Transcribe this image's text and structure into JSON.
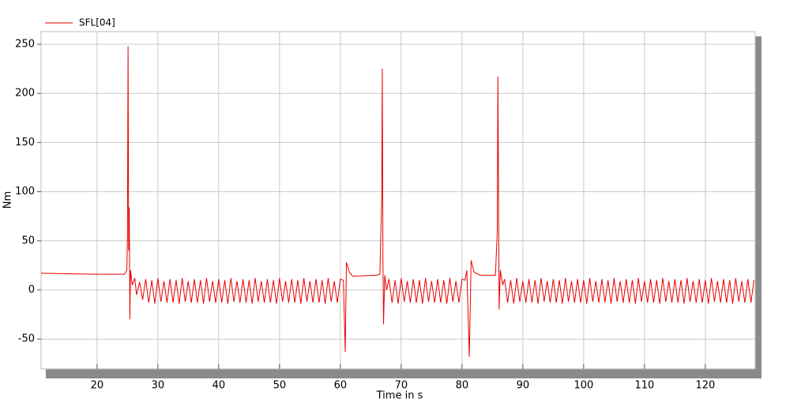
{
  "chart_data": {
    "type": "line",
    "xlabel": "Time in s",
    "ylabel": "Nm",
    "xlim": [
      10.8,
      128.2
    ],
    "ylim": [
      -80.4,
      262.9
    ],
    "xticks": [
      20,
      30,
      40,
      50,
      60,
      70,
      80,
      90,
      100,
      110,
      120
    ],
    "yticks": [
      -50,
      0,
      50,
      100,
      150,
      200,
      250
    ],
    "grid": true,
    "legend": "top-left",
    "x": [
      10.8,
      15,
      20,
      24.5,
      24.9,
      25,
      25.1,
      25.2,
      25.3,
      25.4,
      25.5,
      25.8,
      26.2,
      26.5,
      27,
      27.5,
      28,
      28.5,
      29,
      29.5,
      30,
      30.5,
      31,
      31.5,
      32,
      32.5,
      33,
      33.5,
      34,
      34.5,
      35,
      35.5,
      36,
      36.5,
      37,
      37.5,
      38,
      38.5,
      39,
      39.5,
      40,
      40.5,
      41,
      41.5,
      42,
      42.5,
      43,
      43.5,
      44,
      44.5,
      45,
      45.5,
      46,
      46.5,
      47,
      47.5,
      48,
      48.5,
      49,
      49.5,
      50,
      50.5,
      51,
      51.5,
      52,
      52.5,
      53,
      53.5,
      54,
      54.5,
      55,
      55.5,
      56,
      56.5,
      57,
      57.5,
      58,
      58.5,
      59,
      59.5,
      60,
      60.5,
      60.8,
      61,
      61.5,
      62,
      66,
      66.5,
      66.8,
      66.9,
      67,
      67.1,
      67.3,
      67.6,
      68,
      68.5,
      69,
      69.5,
      70,
      70.5,
      71,
      71.5,
      72,
      72.5,
      73,
      73.5,
      74,
      74.5,
      75,
      75.5,
      76,
      76.5,
      77,
      77.5,
      78,
      78.5,
      79,
      79.5,
      80,
      80.5,
      80.8,
      81.2,
      81.5,
      82,
      83,
      85.5,
      85.8,
      85.9,
      86,
      86.1,
      86.3,
      86.7,
      87,
      87.5,
      88,
      88.5,
      89,
      89.5,
      90,
      90.5,
      91,
      91.5,
      92,
      92.5,
      93,
      93.5,
      94,
      94.5,
      95,
      95.5,
      96,
      96.5,
      97,
      97.5,
      98,
      98.5,
      99,
      99.5,
      100,
      100.5,
      101,
      101.5,
      102,
      102.5,
      103,
      103.5,
      104,
      104.5,
      105,
      105.5,
      106,
      106.5,
      107,
      107.5,
      108,
      108.5,
      109,
      109.5,
      110,
      110.5,
      111,
      111.5,
      112,
      112.5,
      113,
      113.5,
      114,
      114.5,
      115,
      115.5,
      116,
      116.5,
      117,
      117.5,
      118,
      118.5,
      119,
      119.5,
      120,
      120.5,
      121,
      121.5,
      122,
      122.5,
      123,
      123.5,
      124,
      124.5,
      125,
      125.5,
      126,
      126.5,
      127,
      127.5,
      128
    ],
    "series": [
      {
        "name": "SFL[04]",
        "color": "#e80000",
        "values": [
          17,
          16.5,
          16,
          16,
          20,
          55,
          248,
          40,
          84,
          -30,
          20,
          5,
          12,
          -5,
          8,
          -10,
          11,
          -13,
          10,
          -14,
          12,
          -12,
          9,
          -13,
          11,
          -13,
          10,
          -14,
          12,
          -12,
          9,
          -13,
          11,
          -13,
          10,
          -14,
          12,
          -12,
          9,
          -13,
          11,
          -13,
          10,
          -14,
          12,
          -12,
          9,
          -13,
          11,
          -13,
          10,
          -14,
          12,
          -12,
          9,
          -13,
          11,
          -13,
          10,
          -14,
          12,
          -12,
          9,
          -13,
          11,
          -13,
          10,
          -14,
          12,
          -12,
          9,
          -13,
          11,
          -13,
          10,
          -14,
          12,
          -12,
          9,
          -13,
          11,
          10,
          -63,
          28,
          18,
          14,
          15,
          16,
          95,
          225,
          30,
          -35,
          15,
          0,
          11,
          -13,
          10,
          -14,
          12,
          -12,
          9,
          -13,
          11,
          -13,
          10,
          -14,
          12,
          -12,
          9,
          -13,
          11,
          -13,
          10,
          -14,
          12,
          -12,
          9,
          -13,
          11,
          10,
          20,
          -68,
          30,
          18,
          15,
          15,
          60,
          217,
          114,
          -20,
          20,
          5,
          11,
          -13,
          10,
          -14,
          12,
          -12,
          9,
          -13,
          11,
          -13,
          10,
          -14,
          12,
          -12,
          9,
          -13,
          11,
          -13,
          10,
          -14,
          12,
          -12,
          9,
          -13,
          11,
          -13,
          10,
          -14,
          12,
          -12,
          9,
          -13,
          11,
          -13,
          10,
          -14,
          12,
          -12,
          9,
          -13,
          11,
          -13,
          10,
          -14,
          12,
          -12,
          9,
          -13,
          11,
          -13,
          10,
          -14,
          12,
          -12,
          9,
          -13,
          11,
          -13,
          10,
          -14,
          12,
          -12,
          9,
          -13,
          11,
          -13,
          10,
          -14,
          12,
          -12,
          9,
          -13,
          11,
          -13,
          10,
          -14,
          12,
          -12,
          9,
          -13,
          11,
          -13,
          10
        ]
      }
    ]
  }
}
